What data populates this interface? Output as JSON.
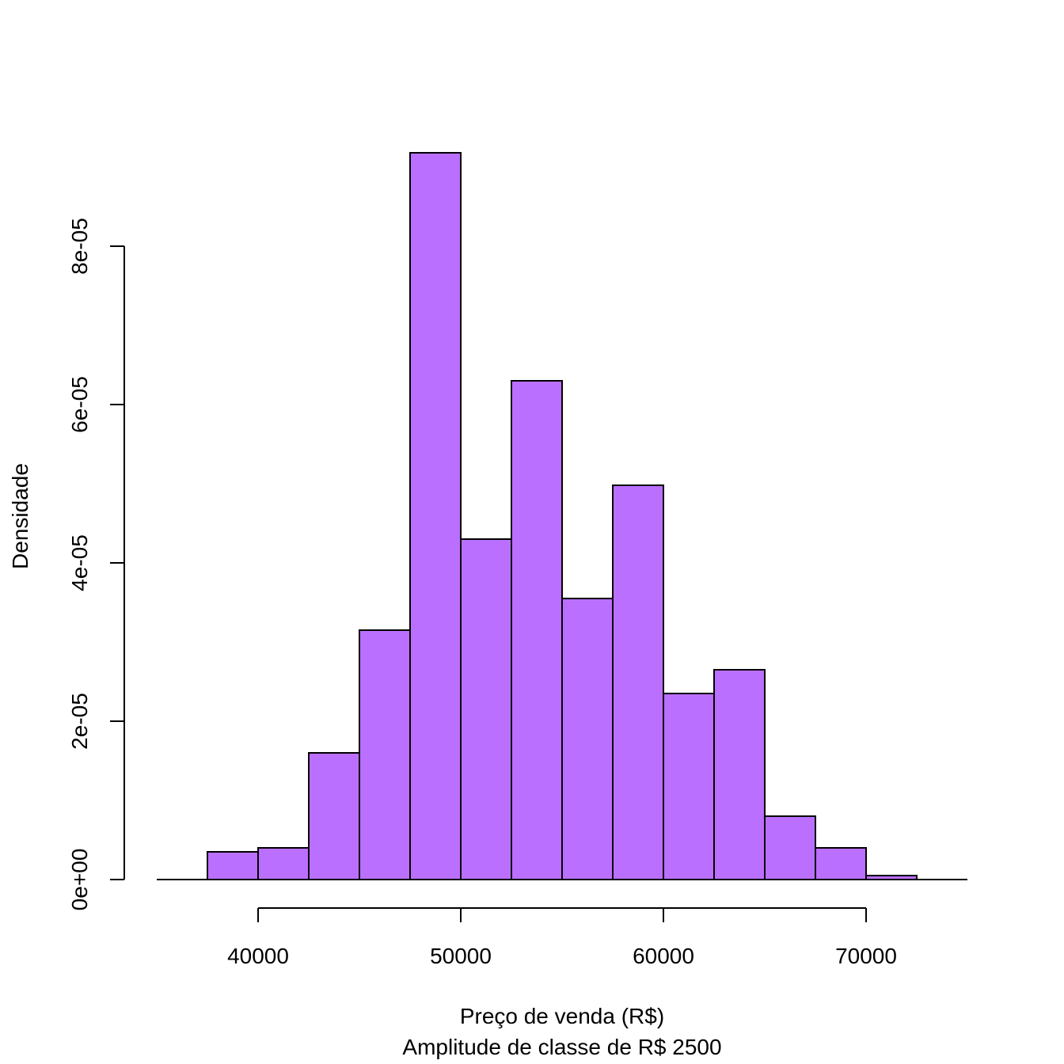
{
  "chart_data": {
    "type": "bar",
    "title": "",
    "xlabel": "Preço de venda (R$)",
    "xlabel_sub": "Amplitude de classe de R$ 2500",
    "ylabel": "Densidade",
    "bin_width": 2500,
    "bins": [
      {
        "start": 37500,
        "end": 40000,
        "density": 3.5e-06
      },
      {
        "start": 40000,
        "end": 42500,
        "density": 4e-06
      },
      {
        "start": 42500,
        "end": 45000,
        "density": 1.6e-05
      },
      {
        "start": 45000,
        "end": 47500,
        "density": 3.15e-05
      },
      {
        "start": 47500,
        "end": 50000,
        "density": 9.18e-05
      },
      {
        "start": 50000,
        "end": 52500,
        "density": 4.3e-05
      },
      {
        "start": 52500,
        "end": 55000,
        "density": 6.3e-05
      },
      {
        "start": 55000,
        "end": 57500,
        "density": 3.55e-05
      },
      {
        "start": 57500,
        "end": 60000,
        "density": 4.98e-05
      },
      {
        "start": 60000,
        "end": 62500,
        "density": 2.35e-05
      },
      {
        "start": 62500,
        "end": 65000,
        "density": 2.65e-05
      },
      {
        "start": 65000,
        "end": 67500,
        "density": 8e-06
      },
      {
        "start": 67500,
        "end": 70000,
        "density": 4e-06
      },
      {
        "start": 70000,
        "end": 72500,
        "density": 5e-07
      }
    ],
    "xlim": [
      35000,
      75000
    ],
    "ylim": [
      0,
      8e-05
    ],
    "xticks": [
      40000,
      50000,
      60000,
      70000
    ],
    "xtick_labels": [
      "40000",
      "50000",
      "60000",
      "70000"
    ],
    "yticks": [
      0,
      2e-05,
      4e-05,
      6e-05,
      8e-05
    ],
    "ytick_labels": [
      "0e+00",
      "2e-05",
      "4e-05",
      "6e-05",
      "8e-05"
    ],
    "bar_color": "#BB6FFF",
    "edge_color": "#000000",
    "grid": false,
    "legend": "none"
  }
}
